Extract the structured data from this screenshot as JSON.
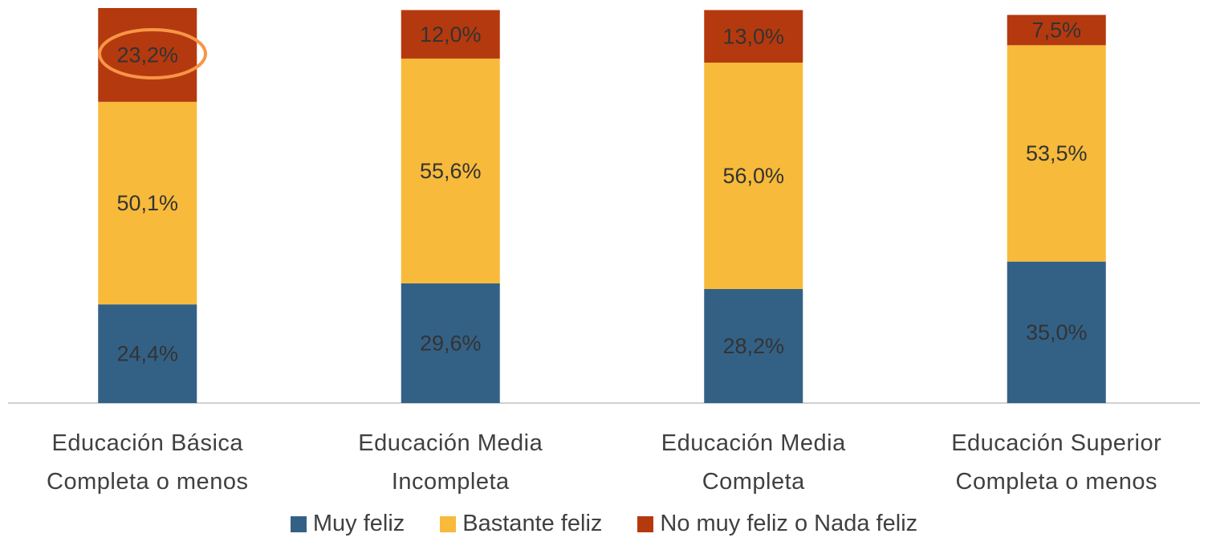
{
  "chart_data": {
    "type": "stacked_bar",
    "categories": [
      "Educación Básica Completa o menos",
      "Educación Media Incompleta",
      "Educación Media Completa",
      "Educación Superior Completa o menos"
    ],
    "series": [
      {
        "name": "Muy feliz",
        "color": "#336186",
        "values": [
          24.4,
          29.6,
          28.2,
          35.0
        ],
        "value_labels": [
          "24,4%",
          "29,6%",
          "28,2%",
          "35,0%"
        ]
      },
      {
        "name": "Bastante feliz",
        "color": "#f7ba3a",
        "values": [
          50.1,
          55.6,
          56.0,
          53.5
        ],
        "value_labels": [
          "50,1%",
          "55,6%",
          "56,0%",
          "53,5%"
        ]
      },
      {
        "name": "No muy feliz o Nada feliz",
        "color": "#b5390e",
        "values": [
          23.2,
          12.0,
          13.0,
          7.5
        ],
        "value_labels": [
          "23,2%",
          "12,0%",
          "13,0%",
          "7,5%"
        ]
      }
    ],
    "legend": "bottom"
  }
}
